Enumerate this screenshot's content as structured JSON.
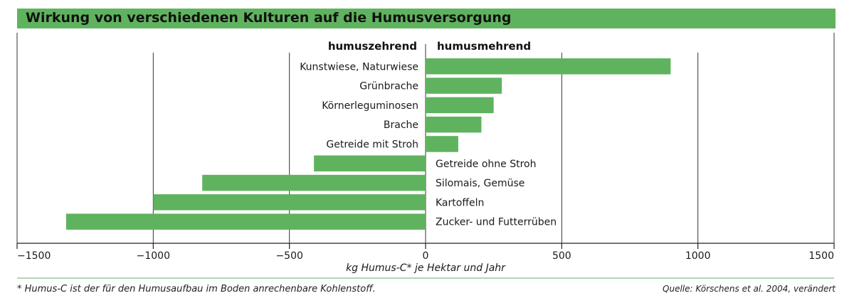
{
  "title": "Wirkung von verschiedenen Kulturen auf die Humusversorgung",
  "footnote": "* Humus-C ist der für den Humusaufbau im Boden anrechenbare Kohlenstoff.",
  "source": "Quelle: Körschens et al. 2004, verändert",
  "colors": {
    "bar": "#5fb35e",
    "banner": "#5fb35e",
    "rule": "#7fbf7e"
  },
  "chart_data": {
    "type": "bar",
    "orientation": "horizontal",
    "xlabel": "kg Humus-C* je Hektar und Jahr",
    "xlim": [
      -1500,
      1500
    ],
    "xticks": [
      -1500,
      -1000,
      -500,
      0,
      500,
      1000,
      1500
    ],
    "xtick_labels": [
      "−1500",
      "−1000",
      "−500",
      "0",
      "500",
      "1000",
      "1500"
    ],
    "grid": true,
    "header_left": "humuszehrend",
    "header_right": "humusmehrend",
    "categories": [
      "Kunstwiese, Naturwiese",
      "Grünbrache",
      "Körnerleguminosen",
      "Brache",
      "Getreide mit Stroh",
      "Getreide ohne Stroh",
      "Silomais, Gemüse",
      "Kartoffeln",
      "Zucker- und Futterrüben"
    ],
    "values": [
      900,
      280,
      250,
      205,
      120,
      -410,
      -820,
      -1000,
      -1320
    ]
  }
}
